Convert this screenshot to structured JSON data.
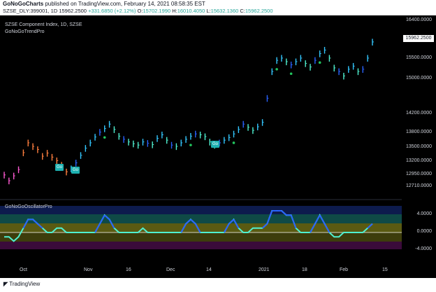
{
  "header": {
    "publisher": "GoNoGoCharts",
    "published_text": "published on TradingView.com, February 14, 2021 08:58:35 EST",
    "symbol_line": "SZSE_DLY:399001, 1D",
    "close_value": "15962.2500",
    "change": "+331.6850 (+2.12%)",
    "open_label": "O:",
    "open": "15702.1990",
    "high_label": "H:",
    "high": "16010.4050",
    "low_label": "L:",
    "low": "15632.1360",
    "close_label": "C:",
    "close": "15962.2500"
  },
  "legend": {
    "title": "SZSE Component Index, 1D, SZSE",
    "indicator": "GoNoGoTrendPro",
    "oscillator": "GoNoGoOscillatorPro"
  },
  "price_axis": {
    "labels": [
      "16400.0000",
      "15500.0000",
      "15000.0000",
      "14200.0000",
      "13800.0000",
      "13500.0000",
      "13200.0000",
      "12950.0000",
      "12710.0000"
    ],
    "last_price": "15962.2500"
  },
  "oscillator_axis": {
    "labels": [
      "4.0000",
      "0.0000",
      "-4.0000"
    ]
  },
  "time_axis": {
    "labels": [
      "Oct",
      "Nov",
      "16",
      "Dec",
      "14",
      "2021",
      "18",
      "Feb",
      "15"
    ]
  },
  "badges": [
    "Go",
    "Go",
    "Go"
  ],
  "footer": {
    "brand": "TradingView"
  },
  "colors": {
    "teal": "#4ff0d0",
    "blue": "#2962ff",
    "cyan": "#33c7ff",
    "orange": "#ff7f3f",
    "pink": "#ff5ad2",
    "green": "#22c55e"
  },
  "chart_data": [
    {
      "type": "line",
      "title": "SZSE Component Index, 1D, SZSE",
      "subtitle": "GoNoGoTrendPro",
      "series": [
        {
          "name": "close",
          "values": [
            12980,
            12850,
            12960,
            13100,
            13480,
            13700,
            13620,
            13550,
            13400,
            13470,
            13380,
            13300,
            13200,
            13050,
            13120,
            13250,
            13420,
            13580,
            13700,
            13830,
            13940,
            14020,
            14120,
            14000,
            13850,
            13780,
            13720,
            13680,
            13650,
            13720,
            13690,
            13660,
            13800,
            13880,
            13760,
            13650,
            13620,
            13700,
            13780,
            13850,
            13900,
            13880,
            13840,
            13720,
            13650,
            13700,
            13760,
            13820,
            13900,
            14000,
            14120,
            14050,
            13980,
            14060,
            14160,
            14700,
            15300,
            15550,
            15600,
            15520,
            15450,
            15520,
            15600,
            15480,
            15400,
            15550,
            15700,
            15780,
            15600,
            15380,
            15300,
            15200,
            15350,
            15420,
            15300,
            15350,
            15600,
            15962
          ]
        }
      ]
    },
    {
      "type": "area",
      "title": "GoNoGoOscillatorPro",
      "ylim": [
        -6,
        6
      ],
      "series": [
        {
          "name": "oscillator",
          "values": [
            -1,
            -1,
            -2,
            -1,
            1,
            3,
            3,
            2,
            1,
            0,
            0,
            1,
            1,
            0,
            0,
            0,
            0,
            0,
            0,
            0,
            2,
            4,
            3,
            1,
            0,
            0,
            0,
            0,
            0,
            1,
            0,
            0,
            0,
            0,
            0,
            0,
            0,
            0,
            2,
            3,
            2,
            0,
            0,
            0,
            0,
            0,
            0,
            2,
            3,
            1,
            0,
            0,
            1,
            1,
            1,
            2,
            5,
            5,
            5,
            4,
            4,
            1,
            0,
            0,
            0,
            2,
            4,
            2,
            0,
            -1,
            -1,
            0,
            0,
            0,
            0,
            0,
            1,
            2
          ]
        }
      ]
    }
  ]
}
